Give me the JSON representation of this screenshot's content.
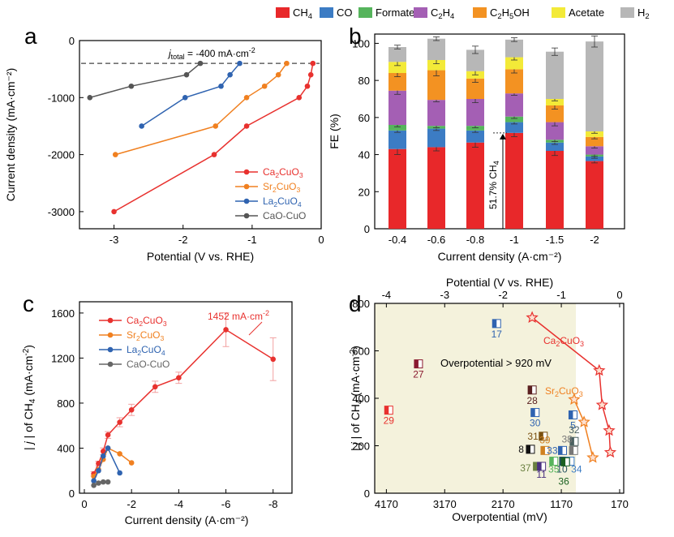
{
  "legend_top": {
    "items": [
      {
        "label": "CH4",
        "color": "#e8282a"
      },
      {
        "label": "CO",
        "color": "#3c7cc4"
      },
      {
        "label": "Formate",
        "color": "#56b45c"
      },
      {
        "label": "C2H4",
        "color": "#a45fb4"
      },
      {
        "label": "C2H5OH",
        "color": "#f39222"
      },
      {
        "label": "Acetate",
        "color": "#f3ea38"
      },
      {
        "label": "H2",
        "color": "#b7b7b7"
      }
    ]
  },
  "panels": {
    "a": "a",
    "b": "b",
    "c": "c",
    "d": "d"
  },
  "chart_data": [
    {
      "panel": "a",
      "type": "line",
      "xlabel": "Potential (V vs. RHE)",
      "ylabel": "Current density (mA·cm⁻²)",
      "xlim": [
        -3.5,
        0
      ],
      "ylim": [
        -3300,
        0
      ],
      "xticks": [
        "-3",
        "-2",
        "-1",
        "0"
      ],
      "yticks": [
        "-3000",
        "-2000",
        "-1000",
        "0"
      ],
      "reference_line": {
        "y": -400,
        "label": "j_total = -400 mA·cm⁻²",
        "label_parts": [
          "j",
          "total",
          " = -400 mA·cm",
          "-2"
        ]
      },
      "legend_position": "bottom-right",
      "series": [
        {
          "name": "Ca2CuO3",
          "color": "#e8312e",
          "x": [
            -3.0,
            -1.55,
            -1.08,
            -0.32,
            -0.2,
            -0.15,
            -0.12
          ],
          "y": [
            -3000,
            -2000,
            -1500,
            -1000,
            -800,
            -600,
            -400
          ]
        },
        {
          "name": "Sr2CuO3",
          "color": "#f08020",
          "x": [
            -2.98,
            -1.53,
            -1.08,
            -0.82,
            -0.62,
            -0.5
          ],
          "y": [
            -2000,
            -1500,
            -1000,
            -800,
            -600,
            -400
          ]
        },
        {
          "name": "La2CuO4",
          "color": "#2f63b0",
          "x": [
            -2.6,
            -1.97,
            -1.45,
            -1.32,
            -1.18
          ],
          "y": [
            -1500,
            -1000,
            -800,
            -600,
            -400
          ]
        },
        {
          "name": "CaO-CuO",
          "color": "#555555",
          "x": [
            -3.35,
            -2.75,
            -1.95,
            -1.75
          ],
          "y": [
            -1000,
            -800,
            -600,
            -400
          ]
        }
      ]
    },
    {
      "panel": "b",
      "type": "bar",
      "stacked": true,
      "xlabel": "Current density (A·cm⁻²)",
      "ylabel": "FE (%)",
      "ylim": [
        0,
        105
      ],
      "yticks": [
        "0",
        "20",
        "40",
        "60",
        "80",
        "100"
      ],
      "categories": [
        "-0.4",
        "-0.6",
        "-0.8",
        "-1",
        "-1.5",
        "-2"
      ],
      "annotation": "51.7% CH4",
      "series": [
        {
          "name": "CH4",
          "values": [
            43,
            44,
            46.5,
            51.7,
            42,
            36.5
          ],
          "errors": [
            3,
            2,
            2.5,
            2,
            2.5,
            1
          ]
        },
        {
          "name": "CO",
          "values": [
            10,
            10,
            6.5,
            5.8,
            4.5,
            2.5
          ],
          "errors": [
            1,
            1,
            1,
            1,
            1,
            1
          ]
        },
        {
          "name": "Formate",
          "values": [
            3,
            1.5,
            2.5,
            3,
            1.5,
            1
          ],
          "errors": [
            1,
            1,
            1,
            1,
            1,
            1
          ]
        },
        {
          "name": "C2H4",
          "values": [
            18.5,
            14,
            14.5,
            12.5,
            9.5,
            4.5
          ],
          "errors": [
            2,
            1,
            2,
            1,
            2,
            1
          ]
        },
        {
          "name": "C2H5OH",
          "values": [
            9.5,
            16,
            11,
            13,
            9,
            5
          ],
          "errors": [
            2,
            3,
            2,
            2,
            2,
            1
          ]
        },
        {
          "name": "Acetate",
          "values": [
            6,
            5.5,
            4,
            6.5,
            3.5,
            3
          ],
          "errors": [
            2,
            2,
            2,
            1.5,
            1,
            1
          ]
        },
        {
          "name": "H2",
          "values": [
            8,
            11.5,
            11.5,
            9.5,
            25.5,
            48.5
          ],
          "errors": [
            1,
            1,
            2,
            1,
            2,
            3
          ]
        }
      ]
    },
    {
      "panel": "c",
      "type": "line",
      "xlabel": "Current density (A·cm⁻²)",
      "ylabel": "| j | of CH4 (mA·cm⁻²)",
      "xlim": [
        0,
        -8.8
      ],
      "ylim": [
        0,
        1700
      ],
      "xticks": [
        "0",
        "-2",
        "-4",
        "-6",
        "-8"
      ],
      "yticks": [
        "0",
        "400",
        "800",
        "1200",
        "1600"
      ],
      "annotation": "1452 mA·cm⁻²",
      "legend_position": "top-left",
      "series": [
        {
          "name": "Ca2CuO3",
          "color": "#e8312e",
          "x": [
            -0.4,
            -0.6,
            -0.8,
            -1,
            -1.5,
            -2,
            -3,
            -4,
            -6,
            -8
          ],
          "y": [
            172,
            264,
            372,
            517,
            630,
            740,
            945,
            1025,
            1452,
            1190
          ],
          "errors": [
            20,
            20,
            30,
            30,
            40,
            50,
            50,
            50,
            150,
            190
          ]
        },
        {
          "name": "Sr2CuO3",
          "color": "#f08020",
          "x": [
            -0.4,
            -0.6,
            -0.8,
            -1,
            -1.5,
            -2
          ],
          "y": [
            150,
            210,
            300,
            400,
            350,
            270
          ]
        },
        {
          "name": "La2CuO4",
          "color": "#2f63b0",
          "x": [
            -0.4,
            -0.6,
            -0.8,
            -1,
            -1.5
          ],
          "y": [
            110,
            200,
            330,
            400,
            180
          ]
        },
        {
          "name": "CaO-CuO",
          "color": "#666666",
          "x": [
            -0.4,
            -0.6,
            -0.8,
            -1
          ],
          "y": [
            70,
            90,
            100,
            100
          ]
        }
      ]
    },
    {
      "panel": "d",
      "type": "scatter",
      "xlabel": "Overpotential (mV)",
      "ylabel": "| j | of CH4 (mA·cm⁻²)",
      "top_xlabel": "Potential (V vs. RHE)",
      "xlim": [
        4370,
        100
      ],
      "ylim": [
        0,
        800
      ],
      "xticks": [
        "4170",
        "3170",
        "2170",
        "1170",
        "170"
      ],
      "top_xticks": [
        "-4",
        "-3",
        "-2",
        "-1",
        "0"
      ],
      "yticks": [
        "0",
        "200",
        "400",
        "600",
        "800"
      ],
      "shaded_region": {
        "x_from": 4370,
        "x_to": 920,
        "label": "Overpotential > 920 mV"
      },
      "series": [
        {
          "name": "Ca2CuO3",
          "color": "#e8312e",
          "x": [
            1670,
            520,
            470,
            350,
            330
          ],
          "y": [
            740,
            517,
            372,
            264,
            172
          ]
        },
        {
          "name": "Sr2CuO3",
          "color": "#f08020",
          "x": [
            950,
            780,
            630
          ],
          "y": [
            395,
            300,
            150
          ]
        }
      ],
      "references": [
        {
          "label": "17",
          "x": 2280,
          "y": 715,
          "color": "#2f63b0"
        },
        {
          "label": "27",
          "x": 3620,
          "y": 545,
          "color": "#8a1a30"
        },
        {
          "label": "28",
          "x": 1670,
          "y": 435,
          "color": "#5a2020"
        },
        {
          "label": "29",
          "x": 4130,
          "y": 350,
          "color": "#e8312e"
        },
        {
          "label": "30",
          "x": 1620,
          "y": 340,
          "color": "#2f63b0"
        },
        {
          "label": "5",
          "x": 970,
          "y": 330,
          "color": "#2f63b0"
        },
        {
          "label": "31",
          "x": 1480,
          "y": 240,
          "color": "#7a5010"
        },
        {
          "label": "32",
          "x": 950,
          "y": 218,
          "color": "#4a6060"
        },
        {
          "label": "8",
          "x": 1700,
          "y": 185,
          "color": "#111111"
        },
        {
          "label": "39",
          "x": 1450,
          "y": 180,
          "color": "#d08020"
        },
        {
          "label": "33",
          "x": 1150,
          "y": 180,
          "color": "#2f63b0"
        },
        {
          "label": "38",
          "x": 960,
          "y": 180,
          "color": "#777777"
        },
        {
          "label": "35",
          "x": 1300,
          "y": 135,
          "color": "#56b45c"
        },
        {
          "label": "10",
          "x": 1130,
          "y": 135,
          "color": "#225060"
        },
        {
          "label": "34",
          "x": 1020,
          "y": 135,
          "color": "#3c7cc4"
        },
        {
          "label": "36",
          "x": 1100,
          "y": 132,
          "color": "#1a6020"
        },
        {
          "label": "37",
          "x": 1580,
          "y": 113,
          "color": "#6a8040"
        },
        {
          "label": "11",
          "x": 1510,
          "y": 113,
          "color": "#4a3080"
        }
      ]
    }
  ]
}
